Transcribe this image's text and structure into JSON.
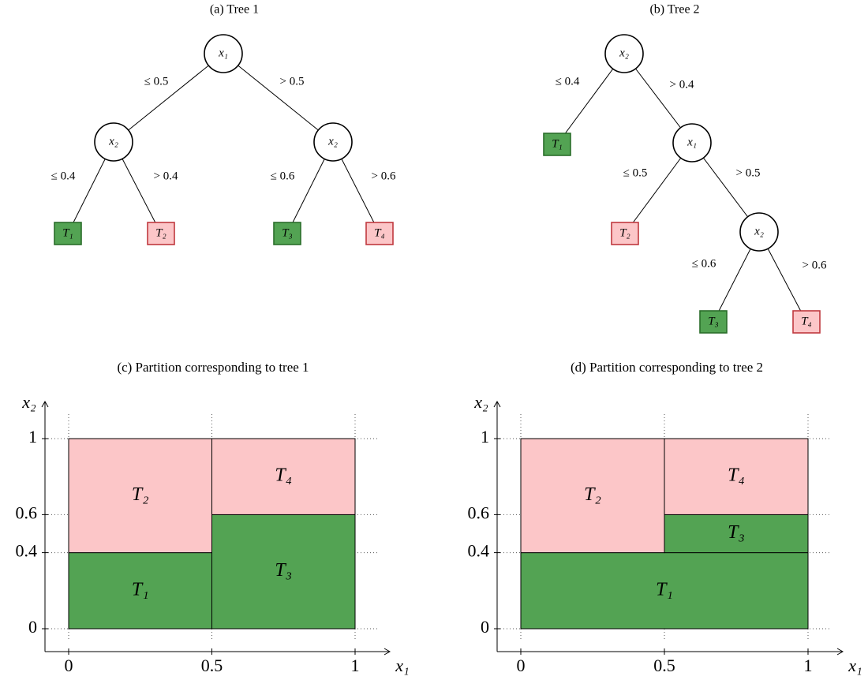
{
  "trees": [
    {
      "title": "(a) Tree 1",
      "nodes": [
        {
          "label": "x₁"
        },
        {
          "label": "x₂"
        },
        {
          "label": "x₂"
        }
      ],
      "leaves": [
        {
          "label": "T₁",
          "color": "green"
        },
        {
          "label": "T₂",
          "color": "pink"
        },
        {
          "label": "T₃",
          "color": "green"
        },
        {
          "label": "T₄",
          "color": "pink"
        }
      ],
      "edges": [
        {
          "label": "≤ 0.5"
        },
        {
          "label": "> 0.5"
        },
        {
          "label": "≤ 0.4"
        },
        {
          "label": "> 0.4"
        },
        {
          "label": "≤ 0.6"
        },
        {
          "label": "> 0.6"
        }
      ]
    },
    {
      "title": "(b) Tree 2",
      "nodes": [
        {
          "label": "x₂"
        },
        {
          "label": "x₁"
        },
        {
          "label": "x₂"
        }
      ],
      "leaves": [
        {
          "label": "T₁",
          "color": "green"
        },
        {
          "label": "T₂",
          "color": "pink"
        },
        {
          "label": "T₃",
          "color": "green"
        },
        {
          "label": "T₄",
          "color": "pink"
        }
      ],
      "edges": [
        {
          "label": "≤ 0.4"
        },
        {
          "label": "> 0.4"
        },
        {
          "label": "≤ 0.5"
        },
        {
          "label": "> 0.5"
        },
        {
          "label": "≤ 0.6"
        },
        {
          "label": "> 0.6"
        }
      ]
    }
  ],
  "partitions": [
    {
      "title": "(c) Partition corresponding to tree 1",
      "x_label": "x₁",
      "y_label": "x₂",
      "xlim": [
        0,
        1
      ],
      "ylim": [
        0,
        1
      ],
      "xticks": [
        0,
        0.5,
        1
      ],
      "yticks": [
        0,
        0.4,
        0.6,
        1
      ],
      "regions": [
        {
          "label": "T₁",
          "color": "green",
          "x": [
            0,
            0.5
          ],
          "y": [
            0,
            0.4
          ]
        },
        {
          "label": "T₂",
          "color": "pink",
          "x": [
            0,
            0.5
          ],
          "y": [
            0.4,
            1
          ]
        },
        {
          "label": "T₃",
          "color": "green",
          "x": [
            0.5,
            1
          ],
          "y": [
            0,
            0.6
          ]
        },
        {
          "label": "T₄",
          "color": "pink",
          "x": [
            0.5,
            1
          ],
          "y": [
            0.6,
            1
          ]
        }
      ]
    },
    {
      "title": "(d) Partition corresponding to tree 2",
      "x_label": "x₁",
      "y_label": "x₂",
      "xlim": [
        0,
        1
      ],
      "ylim": [
        0,
        1
      ],
      "xticks": [
        0,
        0.5,
        1
      ],
      "yticks": [
        0,
        0.4,
        0.6,
        1
      ],
      "regions": [
        {
          "label": "T₁",
          "color": "green",
          "x": [
            0,
            1
          ],
          "y": [
            0,
            0.4
          ]
        },
        {
          "label": "T₂",
          "color": "pink",
          "x": [
            0,
            0.5
          ],
          "y": [
            0.4,
            1
          ]
        },
        {
          "label": "T₃",
          "color": "green",
          "x": [
            0.5,
            1
          ],
          "y": [
            0.4,
            0.6
          ]
        },
        {
          "label": "T₄",
          "color": "pink",
          "x": [
            0.5,
            1
          ],
          "y": [
            0.6,
            1
          ]
        }
      ]
    }
  ]
}
